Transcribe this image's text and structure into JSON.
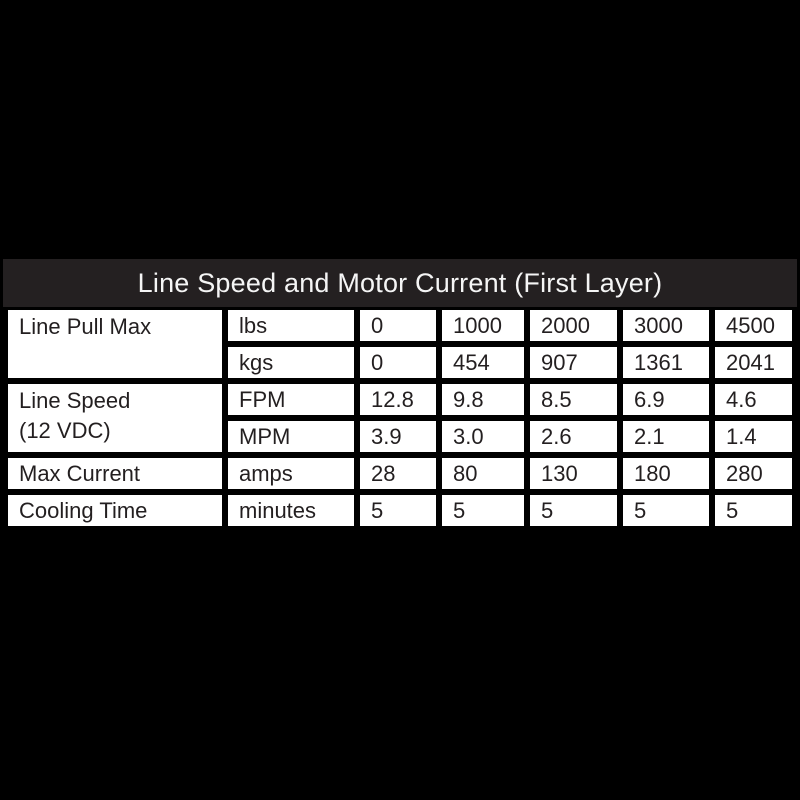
{
  "colors": {
    "page_background": "#000000",
    "title_band": "#242021",
    "cell_background": "#ffffff",
    "cell_text": "#231f20",
    "grid_lines": "#000000",
    "title_text": "#f5f5f5"
  },
  "table": {
    "title": "Line Speed and Motor Current (First Layer)",
    "groups": [
      {
        "label": "Line Pull Max",
        "label_lines": [
          "Line Pull Max"
        ],
        "rows": [
          {
            "unit": "lbs",
            "values": [
              "0",
              "1000",
              "2000",
              "3000",
              "4500"
            ]
          },
          {
            "unit": "kgs",
            "values": [
              "0",
              "454",
              "907",
              "1361",
              "2041"
            ]
          }
        ]
      },
      {
        "label": "Line Speed (12 VDC)",
        "label_lines": [
          "Line Speed",
          "(12 VDC)"
        ],
        "rows": [
          {
            "unit": "FPM",
            "values": [
              "12.8",
              "9.8",
              "8.5",
              "6.9",
              "4.6"
            ]
          },
          {
            "unit": "MPM",
            "values": [
              "3.9",
              "3.0",
              "2.6",
              "2.1",
              "1.4"
            ]
          }
        ]
      },
      {
        "label": "Max Current",
        "label_lines": [
          "Max Current"
        ],
        "rows": [
          {
            "unit": "amps",
            "values": [
              "28",
              "80",
              "130",
              "180",
              "280"
            ]
          }
        ]
      },
      {
        "label": "Cooling Time",
        "label_lines": [
          "Cooling Time"
        ],
        "rows": [
          {
            "unit": "minutes",
            "values": [
              "5",
              "5",
              "5",
              "5",
              "5"
            ]
          }
        ]
      }
    ]
  },
  "chart_data": {
    "type": "table",
    "title": "Line Speed and Motor Current (First Layer)",
    "columns": [
      "Row",
      "Unit",
      "Col1",
      "Col2",
      "Col3",
      "Col4",
      "Col5"
    ],
    "rows": [
      [
        "Line Pull Max",
        "lbs",
        0,
        1000,
        2000,
        3000,
        4500
      ],
      [
        "Line Pull Max",
        "kgs",
        0,
        454,
        907,
        1361,
        2041
      ],
      [
        "Line Speed (12 VDC)",
        "FPM",
        12.8,
        9.8,
        8.5,
        6.9,
        4.6
      ],
      [
        "Line Speed (12 VDC)",
        "MPM",
        3.9,
        3.0,
        2.6,
        2.1,
        1.4
      ],
      [
        "Max Current",
        "amps",
        28,
        80,
        130,
        180,
        280
      ],
      [
        "Cooling Time",
        "minutes",
        5,
        5,
        5,
        5,
        5
      ]
    ]
  }
}
